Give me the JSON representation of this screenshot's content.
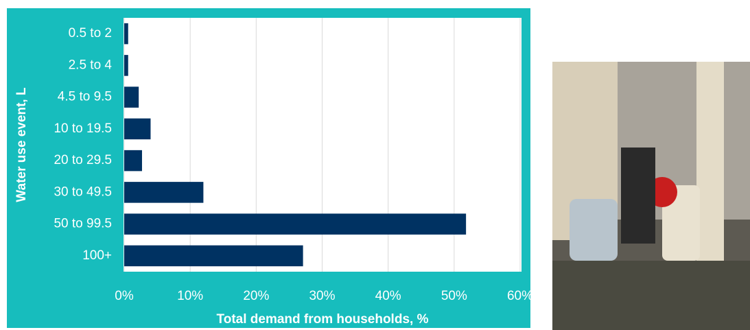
{
  "chart_data": {
    "type": "bar",
    "orientation": "horizontal",
    "categories": [
      "0.5 to 2",
      "2.5 to 4",
      "4.5 to 9.5",
      "10 to 19.5",
      "20 to 29.5",
      "30 to 49.5",
      "50 to 99.5",
      "100+"
    ],
    "values": [
      0.6,
      0.6,
      2.2,
      4.0,
      2.7,
      12.0,
      51.8,
      27.1
    ],
    "color": "#003262",
    "xlim": [
      0,
      60
    ],
    "xticks": [
      {
        "value": 0,
        "label": "0%"
      },
      {
        "value": 10,
        "label": "10%"
      },
      {
        "value": 20,
        "label": "20%"
      },
      {
        "value": 30,
        "label": "30%"
      },
      {
        "value": 40,
        "label": "40%"
      },
      {
        "value": 50,
        "label": "50%"
      },
      {
        "value": 60,
        "label": "60%"
      }
    ],
    "xlabel": "Total demand from households, %",
    "ylabel": "Water use event, L",
    "grid": true
  }
}
